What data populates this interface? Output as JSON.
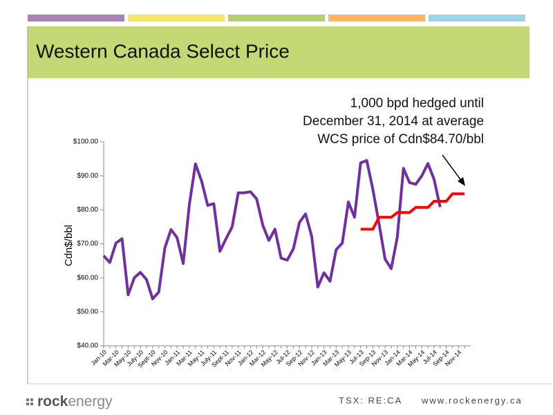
{
  "chart_data": {
    "type": "line",
    "title": "Western Canada Select Price",
    "ylabel": "Cdn$/bbl",
    "annotation": [
      "1,000 bpd hedged until",
      "December 31, 2014 at average",
      "WCS price of Cdn$84.70/bbl"
    ],
    "categories": [
      "Jan-10",
      null,
      "Mar-10",
      null,
      "May-10",
      null,
      "July-10",
      null,
      "Sept-10",
      null,
      "Nov-10",
      null,
      "Jan-11",
      null,
      "Mar-11",
      null,
      "May-11",
      null,
      "July-11",
      null,
      "Sept-11",
      null,
      "Nov-11",
      null,
      "Jan-12",
      null,
      "Mar-12",
      null,
      "May-12",
      null,
      "Jul-12",
      null,
      "Sep-12",
      null,
      "Nov-12",
      null,
      "Jan-13",
      null,
      "Mar-13",
      null,
      "May-13",
      null,
      "Jul-13",
      null,
      "Sep-13",
      null,
      "Nov-13",
      null,
      "Jan-14",
      null,
      "Mar-14",
      null,
      "May-14",
      null,
      "Jul-14",
      null,
      "Sep-14",
      null,
      "Nov-14",
      null
    ],
    "series": [
      {
        "color": "#7030a0",
        "values": [
          66.5,
          64.5,
          70.2,
          71.5,
          55,
          60,
          61.6,
          59.5,
          53.8,
          55.8,
          68.8,
          74.2,
          71.8,
          64.2,
          81.5,
          93.5,
          88.5,
          81.3,
          81.8,
          67.8,
          71.5,
          75,
          85,
          85,
          85.3,
          83.2,
          75.5,
          71,
          74.3,
          65.8,
          65.2,
          68.5,
          76.3,
          78.8,
          72.2,
          57.3,
          61.5,
          59,
          68.3,
          70.2,
          82.3,
          77.8,
          93.8,
          94.5,
          86,
          76,
          65.5,
          62.7,
          72,
          92.2,
          88,
          87.5,
          90,
          93.6,
          89,
          80.8,
          null,
          null,
          null,
          null
        ]
      },
      {
        "color": "#ff0000",
        "values": [
          null,
          null,
          null,
          null,
          null,
          null,
          null,
          null,
          null,
          null,
          null,
          null,
          null,
          null,
          null,
          null,
          null,
          null,
          null,
          null,
          null,
          null,
          null,
          null,
          null,
          null,
          null,
          null,
          null,
          null,
          null,
          null,
          null,
          null,
          null,
          null,
          null,
          null,
          null,
          null,
          null,
          null,
          74.3,
          74.3,
          74.3,
          77.8,
          77.8,
          77.8,
          79.2,
          79.2,
          79.2,
          80.7,
          80.7,
          80.7,
          82.5,
          82.5,
          82.5,
          84.7,
          84.7,
          84.7
        ]
      }
    ],
    "ylim": [
      40,
      100
    ],
    "yticks": [
      {
        "value": 40,
        "label": "$40.00"
      },
      {
        "value": 50,
        "label": "$50.00"
      },
      {
        "value": 60,
        "label": "$60.00"
      },
      {
        "value": 70,
        "label": "$70.00"
      },
      {
        "value": 80,
        "label": "$80.00"
      },
      {
        "value": 90,
        "label": "$90.00"
      },
      {
        "value": 100,
        "label": "$100.00"
      }
    ],
    "grid": false
  },
  "footer": {
    "logo": [
      "rock",
      "energy"
    ],
    "ticker": "TSX: RE:CA",
    "url": "www.rockenergy.ca"
  }
}
